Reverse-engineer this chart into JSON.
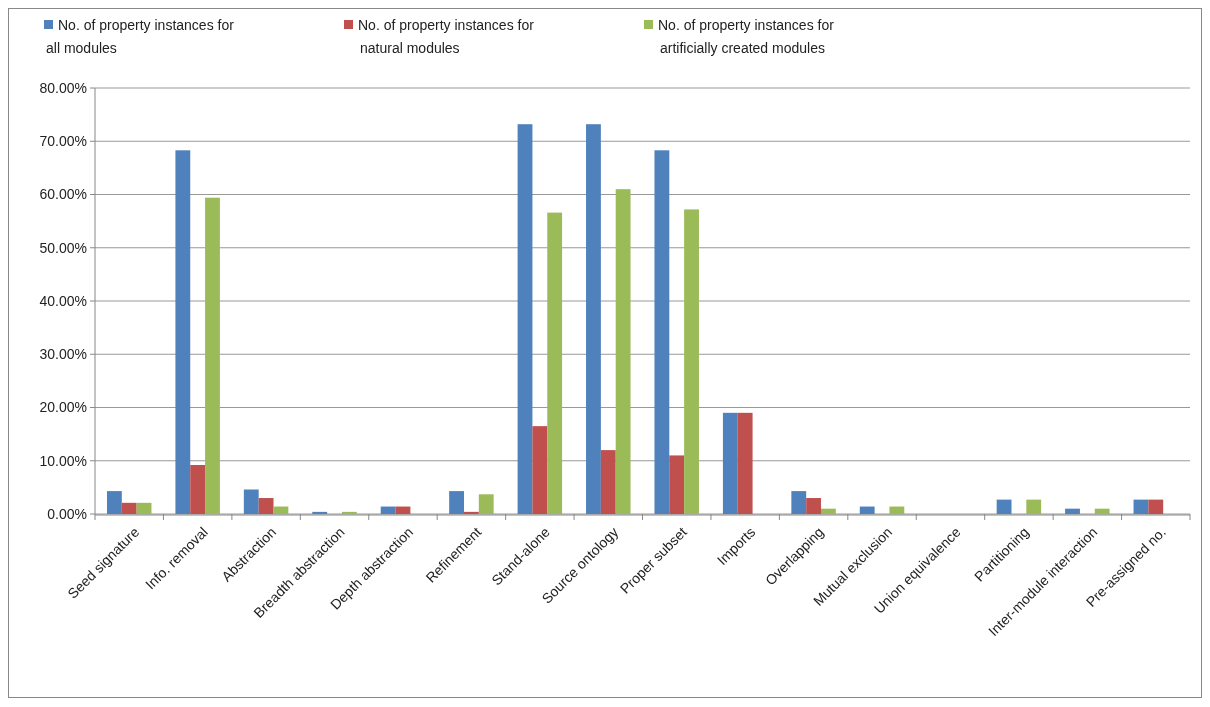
{
  "chart_data": {
    "type": "bar",
    "categories": [
      "Seed signature",
      "Info. removal",
      "Abstraction",
      "Breadth abstraction",
      "Depth abstraction",
      "Refinement",
      "Stand-alone",
      "Source ontology",
      "Proper subset",
      "Imports",
      "Overlapping",
      "Mutual exclusion",
      "Union equivalence",
      "Partitioning",
      "Inter-module interaction",
      "Pre-assigned no."
    ],
    "series": [
      {
        "name": "No. of property instances for all modules",
        "color": "#4f81bd",
        "values": [
          4.3,
          68.3,
          4.6,
          0.4,
          1.4,
          4.3,
          73.2,
          73.2,
          68.3,
          19.0,
          4.3,
          1.4,
          0,
          2.7,
          1.0,
          2.7
        ]
      },
      {
        "name": "No. of property instances for natural modules",
        "color": "#c0504d",
        "values": [
          2.1,
          9.2,
          3.0,
          0,
          1.4,
          0.4,
          16.5,
          12.0,
          11.0,
          19.0,
          3.0,
          0,
          0,
          0,
          0,
          2.7
        ]
      },
      {
        "name": "No. of property instances for artificially created modules",
        "color": "#9bbb59",
        "values": [
          2.1,
          59.4,
          1.4,
          0.4,
          0,
          3.7,
          56.6,
          61.0,
          57.2,
          0,
          1.0,
          1.4,
          0,
          2.7,
          1.0,
          0
        ]
      }
    ],
    "ylim": [
      0,
      80
    ],
    "yticks": [
      {
        "value": 0,
        "label": "0.00%"
      },
      {
        "value": 10,
        "label": "10.00%"
      },
      {
        "value": 20,
        "label": "20.00%"
      },
      {
        "value": 30,
        "label": "30.00%"
      },
      {
        "value": 40,
        "label": "40.00%"
      },
      {
        "value": 50,
        "label": "50.00%"
      },
      {
        "value": 60,
        "label": "60.00%"
      },
      {
        "value": 70,
        "label": "70.00%"
      },
      {
        "value": 80,
        "label": "80.00%"
      }
    ],
    "grid": "y",
    "legend": "top"
  }
}
